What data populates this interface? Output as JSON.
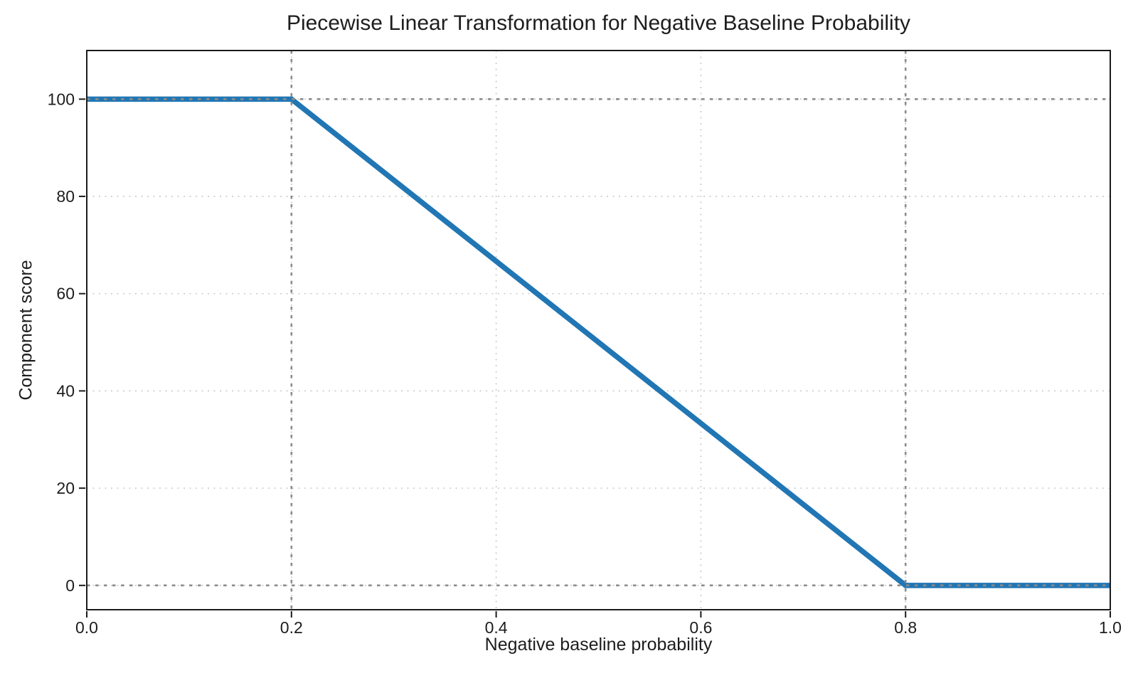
{
  "chart_data": {
    "type": "line",
    "title": "Piecewise Linear Transformation for Negative Baseline Probability",
    "xlabel": "Negative baseline probability",
    "ylabel": "Component score",
    "xlim": [
      0,
      1
    ],
    "ylim": [
      -5,
      110
    ],
    "xticks": [
      0,
      0.2,
      0.4,
      0.6,
      0.8,
      1.0
    ],
    "xtick_labels": [
      "0.0",
      "0.2",
      "0.4",
      "0.6",
      "0.8",
      "1.0"
    ],
    "yticks": [
      0,
      20,
      40,
      60,
      80,
      100
    ],
    "ytick_labels": [
      "0",
      "20",
      "40",
      "60",
      "80",
      "100"
    ],
    "grid": true,
    "grid_linestyle": "dotted",
    "legend": "none",
    "series": [
      {
        "name": "component-score",
        "color": "#2176b4",
        "linewidth": 7.5,
        "points": [
          [
            0,
            100
          ],
          [
            0.2,
            100
          ],
          [
            0.8,
            0
          ],
          [
            1.0,
            0
          ]
        ]
      }
    ],
    "reference_lines": {
      "x": [
        0.2,
        0.8
      ],
      "y": [
        0,
        100
      ],
      "color": "#8c8c8c",
      "linestyle": "dotted"
    },
    "colors": {
      "grid": "#c9c9c9",
      "spine": "#1c1c1c",
      "text": "#1d1d1f",
      "background": "#ffffff"
    }
  }
}
